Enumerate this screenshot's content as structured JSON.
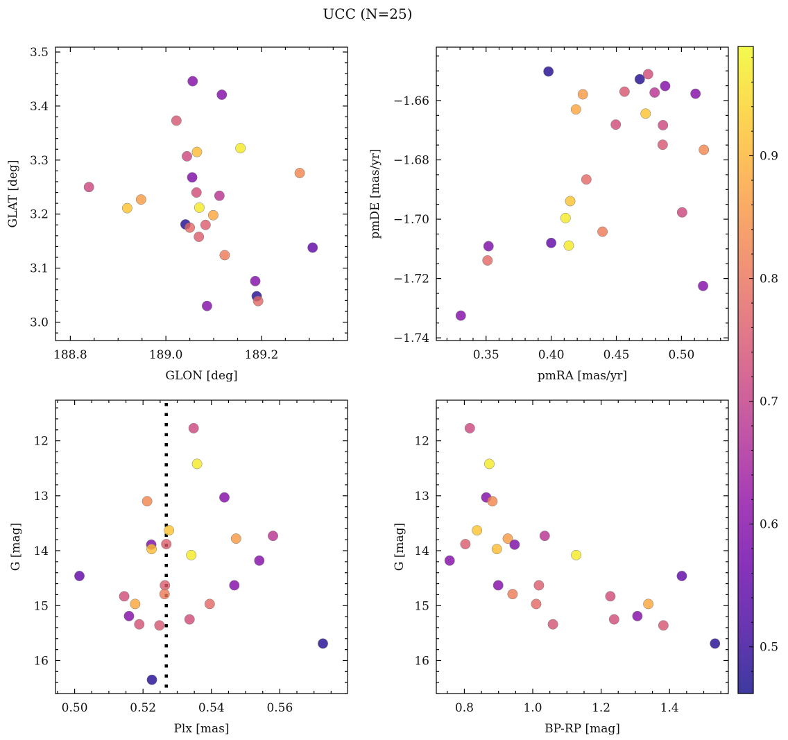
{
  "chart_data": {
    "type": "scatter",
    "title": "UCC (N=25)",
    "colorbar": {
      "range": [
        0.462,
        0.989
      ],
      "colormap": "plasma",
      "ticks": [
        0.5,
        0.6,
        0.7,
        0.8,
        0.9
      ],
      "tick_labels": [
        "0.5",
        "0.6",
        "0.7",
        "0.8",
        "0.9"
      ],
      "minor_step": 0.02
    },
    "panels": [
      {
        "id": "glon-glat",
        "xlabel": "GLON [deg]",
        "ylabel": "GLAT [deg]",
        "xlim": [
          188.769,
          189.38
        ],
        "ylim": [
          2.966,
          3.509
        ],
        "xticks": [
          188.8,
          189.0,
          189.2
        ],
        "xtick_labels": [
          "188.8",
          "189.0",
          "189.2"
        ],
        "xminor": 0.05,
        "yticks": [
          3.0,
          3.1,
          3.2,
          3.3,
          3.4,
          3.5
        ],
        "ytick_labels": [
          "3.0",
          "3.1",
          "3.2",
          "3.3",
          "3.4",
          "3.5"
        ],
        "yminor": 0.02,
        "points": [
          [
            189.056,
            3.446,
            0.6
          ],
          [
            189.117,
            3.421,
            0.6
          ],
          [
            189.022,
            3.373,
            0.75
          ],
          [
            189.156,
            3.322,
            0.97
          ],
          [
            189.065,
            3.315,
            0.91
          ],
          [
            189.044,
            3.307,
            0.72
          ],
          [
            189.28,
            3.276,
            0.83
          ],
          [
            189.055,
            3.268,
            0.59
          ],
          [
            188.839,
            3.25,
            0.72
          ],
          [
            189.064,
            3.24,
            0.73
          ],
          [
            189.112,
            3.234,
            0.68
          ],
          [
            188.948,
            3.227,
            0.86
          ],
          [
            188.919,
            3.211,
            0.92
          ],
          [
            189.07,
            3.212,
            0.97
          ],
          [
            189.099,
            3.198,
            0.88
          ],
          [
            189.041,
            3.181,
            0.48
          ],
          [
            189.05,
            3.175,
            0.78
          ],
          [
            189.083,
            3.18,
            0.76
          ],
          [
            189.069,
            3.158,
            0.76
          ],
          [
            189.307,
            3.138,
            0.55
          ],
          [
            189.123,
            3.124,
            0.81
          ],
          [
            189.187,
            3.076,
            0.6
          ],
          [
            189.19,
            3.048,
            0.48
          ],
          [
            189.193,
            3.039,
            0.78
          ],
          [
            189.086,
            3.03,
            0.6
          ]
        ]
      },
      {
        "id": "pmra-pmde",
        "xlabel": "pmRA [mas/yr]",
        "ylabel": "pmDE [mas/yr]",
        "xlim": [
          0.3118,
          0.536
        ],
        "ylim": [
          -1.7409,
          -1.642
        ],
        "xticks": [
          0.35,
          0.4,
          0.45,
          0.5
        ],
        "xtick_labels": [
          "0.35",
          "0.40",
          "0.45",
          "0.50"
        ],
        "xminor": 0.01,
        "yticks": [
          -1.74,
          -1.72,
          -1.7,
          -1.68,
          -1.66
        ],
        "ytick_labels": [
          "−1.74",
          "−1.72",
          "−1.70",
          "−1.68",
          "−1.66"
        ],
        "yminor": 0.005,
        "points": [
          [
            0.3979,
            -1.6502,
            0.48
          ],
          [
            0.468,
            -1.6528,
            0.48
          ],
          [
            0.4744,
            -1.6511,
            0.73
          ],
          [
            0.4875,
            -1.6551,
            0.6
          ],
          [
            0.4794,
            -1.6573,
            0.68
          ],
          [
            0.4563,
            -1.657,
            0.75
          ],
          [
            0.4243,
            -1.6579,
            0.86
          ],
          [
            0.5108,
            -1.6577,
            0.6
          ],
          [
            0.419,
            -1.663,
            0.88
          ],
          [
            0.4725,
            -1.6644,
            0.92
          ],
          [
            0.4496,
            -1.6681,
            0.73
          ],
          [
            0.4858,
            -1.6683,
            0.72
          ],
          [
            0.4856,
            -1.6749,
            0.75
          ],
          [
            0.5172,
            -1.6766,
            0.83
          ],
          [
            0.427,
            -1.6866,
            0.78
          ],
          [
            0.4146,
            -1.6939,
            0.92
          ],
          [
            0.411,
            -1.6996,
            0.97
          ],
          [
            0.5005,
            -1.6977,
            0.72
          ],
          [
            0.4394,
            -1.7042,
            0.81
          ],
          [
            0.4,
            -1.708,
            0.55
          ],
          [
            0.4135,
            -1.7089,
            0.97
          ],
          [
            0.3519,
            -1.7091,
            0.59
          ],
          [
            0.3511,
            -1.7139,
            0.78
          ],
          [
            0.5166,
            -1.7225,
            0.6
          ],
          [
            0.3306,
            -1.7325,
            0.6
          ]
        ]
      },
      {
        "id": "plx-g",
        "xlabel": "Plx [mas]",
        "ylabel": "G [mag]",
        "xlim": [
          0.4944,
          0.5798
        ],
        "ylim": [
          16.6,
          11.26
        ],
        "xticks": [
          0.5,
          0.52,
          0.54,
          0.56
        ],
        "xtick_labels": [
          "0.50",
          "0.52",
          "0.54",
          "0.56"
        ],
        "xminor": 0.005,
        "yticks": [
          12,
          13,
          14,
          15,
          16
        ],
        "ytick_labels": [
          "12",
          "13",
          "14",
          "15",
          "16"
        ],
        "yminor": 0.2,
        "vline": 0.5268,
        "points": [
          [
            0.5348,
            11.77,
            0.72
          ],
          [
            0.5358,
            12.42,
            0.97
          ],
          [
            0.5438,
            13.03,
            0.6
          ],
          [
            0.5212,
            13.1,
            0.83
          ],
          [
            0.5276,
            13.63,
            0.92
          ],
          [
            0.558,
            13.73,
            0.68
          ],
          [
            0.5472,
            13.78,
            0.86
          ],
          [
            0.5224,
            13.89,
            0.59
          ],
          [
            0.5268,
            13.88,
            0.76
          ],
          [
            0.5225,
            13.97,
            0.91
          ],
          [
            0.5341,
            14.08,
            0.97
          ],
          [
            0.554,
            14.18,
            0.6
          ],
          [
            0.5014,
            14.46,
            0.55
          ],
          [
            0.5467,
            14.63,
            0.6
          ],
          [
            0.5264,
            14.63,
            0.76
          ],
          [
            0.5145,
            14.83,
            0.73
          ],
          [
            0.5263,
            14.79,
            0.81
          ],
          [
            0.5177,
            14.97,
            0.88
          ],
          [
            0.5395,
            14.97,
            0.78
          ],
          [
            0.5159,
            15.19,
            0.6
          ],
          [
            0.5336,
            15.25,
            0.73
          ],
          [
            0.5189,
            15.34,
            0.74
          ],
          [
            0.5248,
            15.36,
            0.75
          ],
          [
            0.5726,
            15.69,
            0.48
          ],
          [
            0.5226,
            16.35,
            0.48
          ]
        ]
      },
      {
        "id": "bprp-g",
        "xlabel": "BP-RP [mag]",
        "ylabel": "G [mag]",
        "xlim": [
          0.718,
          1.572
        ],
        "ylim": [
          16.6,
          11.26
        ],
        "xticks": [
          0.8,
          1.0,
          1.2,
          1.4
        ],
        "xtick_labels": [
          "0.8",
          "1.0",
          "1.2",
          "1.4"
        ],
        "xminor": 0.05,
        "yticks": [
          12,
          13,
          14,
          15,
          16
        ],
        "ytick_labels": [
          "12",
          "13",
          "14",
          "15",
          "16"
        ],
        "yminor": 0.2,
        "points": [
          [
            0.816,
            11.77,
            0.72
          ],
          [
            0.873,
            12.42,
            0.97
          ],
          [
            0.864,
            13.03,
            0.6
          ],
          [
            0.882,
            13.1,
            0.83
          ],
          [
            0.837,
            13.63,
            0.92
          ],
          [
            1.035,
            13.73,
            0.68
          ],
          [
            0.927,
            13.78,
            0.86
          ],
          [
            0.947,
            13.89,
            0.59
          ],
          [
            0.803,
            13.88,
            0.76
          ],
          [
            0.895,
            13.97,
            0.91
          ],
          [
            1.127,
            14.08,
            0.97
          ],
          [
            0.757,
            14.18,
            0.6
          ],
          [
            1.436,
            14.46,
            0.55
          ],
          [
            0.899,
            14.63,
            0.6
          ],
          [
            1.018,
            14.63,
            0.76
          ],
          [
            1.227,
            14.83,
            0.73
          ],
          [
            0.941,
            14.79,
            0.81
          ],
          [
            1.338,
            14.97,
            0.88
          ],
          [
            1.01,
            14.97,
            0.78
          ],
          [
            1.306,
            15.19,
            0.6
          ],
          [
            1.238,
            15.25,
            0.73
          ],
          [
            1.059,
            15.34,
            0.74
          ],
          [
            1.382,
            15.36,
            0.75
          ],
          [
            1.533,
            15.69,
            0.48
          ]
        ]
      }
    ]
  }
}
